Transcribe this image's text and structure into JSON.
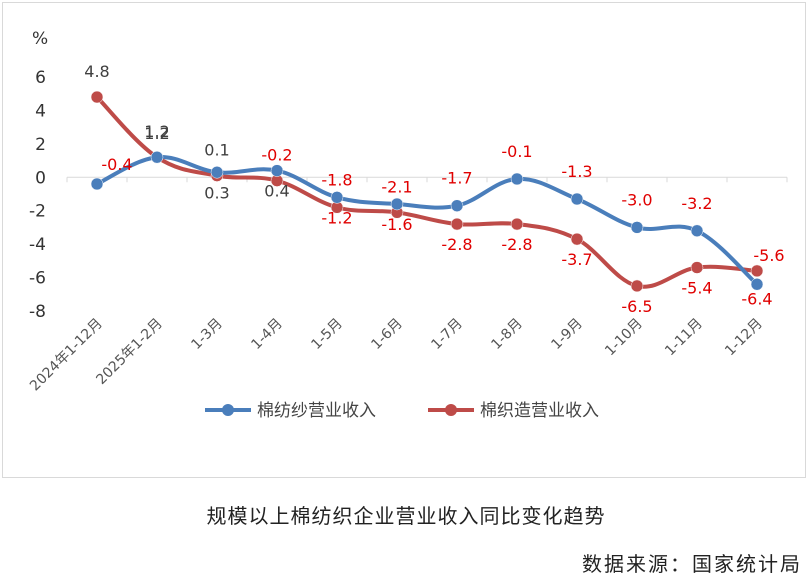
{
  "chart_data": {
    "type": "line",
    "ylabel": "%",
    "ylim": [
      -8,
      6
    ],
    "yticks": [
      "6",
      "4",
      "2",
      "0",
      "-2",
      "-4",
      "-6",
      "-8"
    ],
    "categories": [
      "2024年1-12月",
      "2025年1-2月",
      "1-3月",
      "1-4月",
      "1-5月",
      "1-6月",
      "1-7月",
      "1-8月",
      "1-9月",
      "1-10月",
      "1-11月",
      "1-12月"
    ],
    "legend_position": "bottom",
    "grid": false,
    "series": [
      {
        "name": "棉纺纱营业收入",
        "color": "#4A7EBB",
        "values": [
          -0.4,
          1.2,
          0.3,
          0.4,
          -1.2,
          -1.6,
          -1.7,
          -0.1,
          -1.3,
          -3.0,
          -3.2,
          -6.4
        ],
        "labels": [
          "-0.4",
          "1.2",
          "0.3",
          "0.4",
          "-1.2",
          "-1.6",
          "-1.7",
          "-0.1",
          "-1.3",
          "-3.0",
          "-3.2",
          "-6.4"
        ],
        "label_colors": [
          "#e00000",
          "#404040",
          "#404040",
          "#404040",
          "#e00000",
          "#e00000",
          "#e00000",
          "#e00000",
          "#e00000",
          "#e00000",
          "#e00000",
          "#e00000"
        ]
      },
      {
        "name": "棉织造营业收入",
        "color": "#BE4B48",
        "values": [
          4.8,
          1.2,
          0.1,
          -0.2,
          -1.8,
          -2.1,
          -2.8,
          -2.8,
          -3.7,
          -6.5,
          -5.4,
          -5.6
        ],
        "labels": [
          "4.8",
          "1.2",
          "0.1",
          "-0.2",
          "-1.8",
          "-2.1",
          "-2.8",
          "-2.8",
          "-3.7",
          "-6.5",
          "-5.4",
          "-5.6"
        ],
        "label_colors": [
          "#404040",
          "#404040",
          "#404040",
          "#e00000",
          "#e00000",
          "#e00000",
          "#e00000",
          "#e00000",
          "#e00000",
          "#e00000",
          "#e00000",
          "#e00000"
        ]
      }
    ]
  },
  "caption": "规模以上棉纺织企业营业收入同比变化趋势",
  "source": "数据来源：国家统计局"
}
